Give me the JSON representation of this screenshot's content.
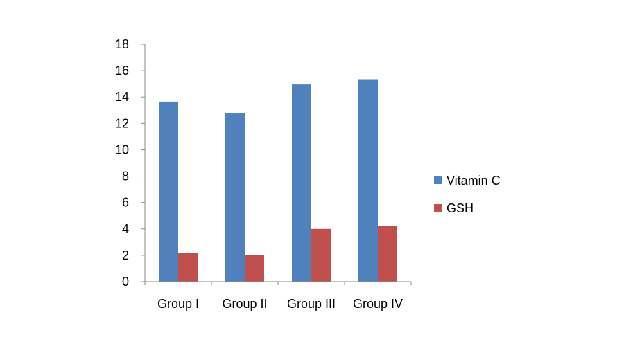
{
  "chart_data": {
    "type": "bar",
    "categories": [
      "Group I",
      "Group II",
      "Group III",
      "Group IV"
    ],
    "series": [
      {
        "name": "Vitamin C",
        "color": "#4F81BD",
        "values": [
          13.65,
          12.75,
          14.95,
          15.35
        ]
      },
      {
        "name": "GSH",
        "color": "#C0504D",
        "values": [
          2.2,
          2.0,
          4.0,
          4.2
        ]
      }
    ],
    "title": "",
    "xlabel": "",
    "ylabel": "",
    "ylim": [
      0,
      18
    ],
    "yticks": [
      0,
      2,
      4,
      6,
      8,
      10,
      12,
      14,
      16,
      18
    ],
    "grid": false,
    "legend_position": "right"
  }
}
